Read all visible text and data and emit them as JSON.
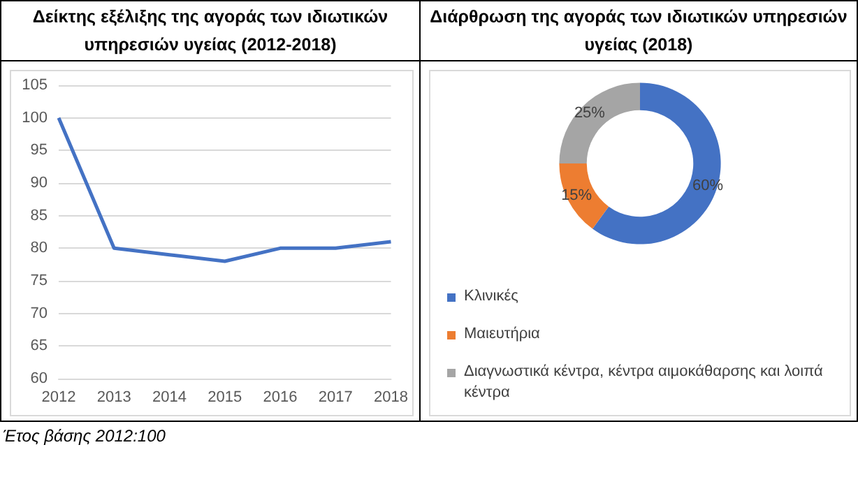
{
  "chart_data": [
    {
      "type": "line",
      "title": "Δείκτης εξέλιξης της αγοράς των ιδιωτικών υπηρεσιών υγείας (2012-2018)",
      "categories": [
        "2012",
        "2013",
        "2014",
        "2015",
        "2016",
        "2017",
        "2018"
      ],
      "series": [
        {
          "color": "#4472c4",
          "values": [
            100,
            80,
            79,
            78,
            80,
            80,
            81
          ]
        }
      ],
      "ylim": [
        60,
        105
      ],
      "yticks": [
        60,
        65,
        70,
        75,
        80,
        85,
        90,
        95,
        100,
        105
      ],
      "grid": "y",
      "marker": "none",
      "annotations": [
        "Έτος βάσης 2012:100"
      ]
    },
    {
      "type": "donut",
      "title": "Διάρθρωση της αγοράς των ιδιωτικών υπηρεσιών υγείας (2018)",
      "categories": [
        "Κλινικές",
        "Μαιευτήρια",
        "Διαγνωστικά κέντρα, κέντρα αιμοκάθαρσης και λοιπά κέντρα"
      ],
      "values": [
        60,
        15,
        25
      ],
      "colors": [
        "#4472c4",
        "#ed7d31",
        "#a5a5a5"
      ],
      "value_labels": [
        "60%",
        "15%",
        "25%"
      ],
      "legend": "bottom left"
    }
  ]
}
